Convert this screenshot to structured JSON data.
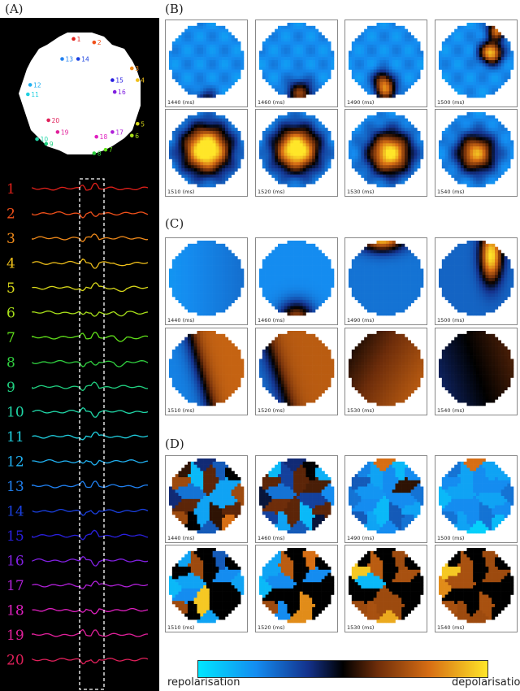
{
  "panels": {
    "A": "(A)",
    "B": "(B)",
    "C": "(C)",
    "D": "(D)"
  },
  "electrodes": [
    {
      "id": "1",
      "color": "#e0201a",
      "mx": 0.44,
      "my": 0.03
    },
    {
      "id": "2",
      "color": "#f0501a",
      "mx": 0.62,
      "my": 0.06
    },
    {
      "id": "3",
      "color": "#f08a1a",
      "mx": 0.95,
      "my": 0.28
    },
    {
      "id": "4",
      "color": "#f0c01a",
      "mx": 1.0,
      "my": 0.38
    },
    {
      "id": "5",
      "color": "#d8d81a",
      "mx": 1.0,
      "my": 0.75
    },
    {
      "id": "6",
      "color": "#a8e01a",
      "mx": 0.95,
      "my": 0.85
    },
    {
      "id": "7",
      "color": "#60e01a",
      "mx": 0.72,
      "my": 0.97
    },
    {
      "id": "8",
      "color": "#30d040",
      "mx": 0.62,
      "my": 1.0
    },
    {
      "id": "9",
      "color": "#20d080",
      "mx": 0.2,
      "my": 0.92
    },
    {
      "id": "10",
      "color": "#20d8a8",
      "mx": 0.12,
      "my": 0.88
    },
    {
      "id": "11",
      "color": "#20d0e0",
      "mx": 0.04,
      "my": 0.5
    },
    {
      "id": "12",
      "color": "#20b0f0",
      "mx": 0.06,
      "my": 0.42
    },
    {
      "id": "13",
      "color": "#2080f0",
      "mx": 0.34,
      "my": 0.2
    },
    {
      "id": "14",
      "color": "#1a40e0",
      "mx": 0.48,
      "my": 0.2
    },
    {
      "id": "15",
      "color": "#2a20e0",
      "mx": 0.78,
      "my": 0.38
    },
    {
      "id": "16",
      "color": "#8020e0",
      "mx": 0.8,
      "my": 0.48
    },
    {
      "id": "17",
      "color": "#b020d8",
      "mx": 0.78,
      "my": 0.82
    },
    {
      "id": "18",
      "color": "#e020c0",
      "mx": 0.64,
      "my": 0.86
    },
    {
      "id": "19",
      "color": "#e0209a",
      "mx": 0.3,
      "my": 0.82
    },
    {
      "id": "20",
      "color": "#e0205a",
      "mx": 0.22,
      "my": 0.72
    }
  ],
  "times": [
    "1440 (ms)",
    "1460 (ms)",
    "1490 (ms)",
    "1500 (ms)",
    "1510 (ms)",
    "1520 (ms)",
    "1530 (ms)",
    "1540 (ms)"
  ],
  "colorbar": {
    "left_label": "repolarisation",
    "right_label": "depolarisation"
  }
}
